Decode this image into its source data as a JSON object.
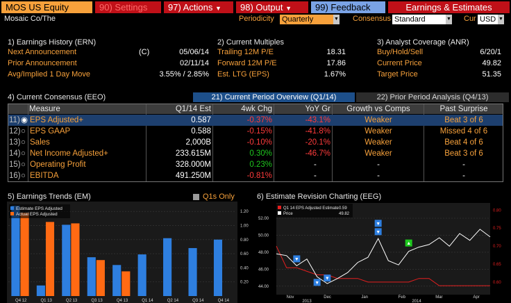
{
  "toolbar": {
    "security": "MOS US Equity",
    "settings": "90) Settings",
    "actions": "97) Actions",
    "output": "98) Output",
    "feedback": "99) Feedback",
    "title": "Earnings & Estimates"
  },
  "header": {
    "company": "Mosaic Co/The",
    "periodicity_label": "Periodicity",
    "periodicity_value": "Quarterly",
    "consensus_label": "Consensus",
    "consensus_value": "Standard",
    "cur_label": "Cur",
    "cur_value": "USD"
  },
  "earnings_history": {
    "title": "1) Earnings History (ERN)",
    "rows": [
      {
        "label": "Next Announcement",
        "flag": "(C)",
        "value": "05/06/14"
      },
      {
        "label": "Prior Announcement",
        "flag": "",
        "value": "02/11/14"
      },
      {
        "label": "Avg/Implied 1 Day Move",
        "flag": "",
        "value": "3.55% / 2.85%"
      }
    ]
  },
  "current_multiples": {
    "title": "2) Current Multiples",
    "rows": [
      {
        "label": "Trailing 12M P/E",
        "value": "18.31"
      },
      {
        "label": "Forward 12M P/E",
        "value": "17.86"
      },
      {
        "label": "Est. LTG (EPS)",
        "value": "1.67%"
      }
    ]
  },
  "analyst_coverage": {
    "title": "3) Analyst Coverage (ANR)",
    "rows": [
      {
        "label": "Buy/Hold/Sell",
        "value": "6/20/1"
      },
      {
        "label": "Current Price",
        "value": "49.82"
      },
      {
        "label": "Target Price",
        "value": "51.35"
      }
    ]
  },
  "consensus": {
    "title": "4) Current Consensus (EEO)",
    "tab_current": "21) Current Period Overview (Q1/14)",
    "tab_prior": "22) Prior Period Analysis (Q4/13)",
    "columns": [
      "Measure",
      "Q1/14 Est",
      "4wk Chg",
      "YoY Gr",
      "Growth vs Comps",
      "Past Surprise"
    ],
    "rows": [
      {
        "idx": "11)",
        "measure": "EPS Adjusted+",
        "est": "0.587",
        "chg": "-0.37%",
        "yoy": "-43.1%",
        "growth": "Weaker",
        "surprise": "Beat 3 of 6"
      },
      {
        "idx": "12)",
        "measure": "EPS GAAP",
        "est": "0.588",
        "chg": "-0.15%",
        "yoy": "-41.8%",
        "growth": "Weaker",
        "surprise": "Missed 4 of 6"
      },
      {
        "idx": "13)",
        "measure": "Sales",
        "est": "2,000B",
        "chg": "-0.10%",
        "yoy": "-20.1%",
        "growth": "Weaker",
        "surprise": "Beat 4 of 6"
      },
      {
        "idx": "14)",
        "measure": "Net Income Adjusted+",
        "est": "233.615M",
        "chg": "0.30%",
        "yoy": "-46.7%",
        "growth": "Weaker",
        "surprise": "Beat 3 of 6"
      },
      {
        "idx": "15)",
        "measure": "Operating Profit",
        "est": "328.000M",
        "chg": "0.23%",
        "yoy": "-",
        "growth": "-",
        "surprise": "-"
      },
      {
        "idx": "16)",
        "measure": "EBITDA",
        "est": "491.250M",
        "chg": "-0.81%",
        "yoy": "-",
        "growth": "-",
        "surprise": "-"
      }
    ]
  },
  "earnings_trends": {
    "title": "5) Earnings Trends (EM)",
    "q1_only": "Q1s Only"
  },
  "estimate_revision": {
    "title": "6) Estimate Revision Charting (EEG)"
  },
  "chart_data": [
    {
      "type": "bar",
      "categories": [
        "Q4 12",
        "Q1 13",
        "Q2 13",
        "Q3 13",
        "Q4 13",
        "Q1 14",
        "Q2 14",
        "Q3 14",
        "Q4 14"
      ],
      "series": [
        {
          "name": "Estimate EPS Adjusted",
          "color": "#2e7fe0",
          "values": [
            1.28,
            0.15,
            1.01,
            0.55,
            0.44,
            0.59,
            0.82,
            0.68,
            0.8
          ]
        },
        {
          "name": "Actual EPS Adjusted",
          "color": "#ff6a13",
          "values": [
            1.18,
            1.05,
            1.03,
            0.51,
            0.35,
            null,
            null,
            null,
            null
          ]
        }
      ],
      "yticks": [
        "0.20",
        "0.40",
        "0.60",
        "0.80",
        "1.00",
        "1.20"
      ],
      "ylim": [
        0,
        1.3
      ]
    },
    {
      "type": "line",
      "x_labels": [
        "Nov",
        "Dec",
        "Jan",
        "Feb",
        "Mar",
        "Apr"
      ],
      "year_labels": [
        "2013",
        "2014"
      ],
      "left_yticks": [
        "44.00",
        "46.00",
        "48.00",
        "50.00",
        "52.00"
      ],
      "right_yticks": [
        "0.60",
        "0.65",
        "0.70",
        "0.75",
        "0.80"
      ],
      "series": [
        {
          "name": "Q1 14 EPS Adjusted Estimate",
          "value_label": "0.59",
          "color": "#e41f1f",
          "axis": "right",
          "values": [
            0.7,
            0.64,
            0.64,
            0.63,
            0.62,
            0.62,
            0.61,
            0.61,
            0.61,
            0.6,
            0.6,
            0.6,
            0.6,
            0.6,
            0.61,
            0.61,
            0.59,
            0.59,
            0.59,
            0.59,
            0.59,
            0.59
          ]
        },
        {
          "name": "Price",
          "value_label": "49.82",
          "color": "#ffffff",
          "axis": "left",
          "values": [
            47.8,
            47.6,
            46.4,
            47.2,
            45.1,
            44.3,
            44.9,
            45.6,
            46.8,
            47.4,
            49.6,
            47.0,
            46.5,
            48.1,
            48.6,
            48.9,
            49.7,
            48.7,
            50.2,
            49.4,
            50.7,
            49.8
          ]
        }
      ],
      "markers": [
        {
          "type": "down",
          "color": "#2e7fe0"
        },
        {
          "type": "down",
          "color": "#2e7fe0"
        },
        {
          "type": "down",
          "color": "#2e7fe0"
        },
        {
          "type": "down",
          "color": "#2e7fe0"
        },
        {
          "type": "down",
          "color": "#2e7fe0"
        },
        {
          "type": "up",
          "color": "#1ec81e"
        }
      ]
    }
  ]
}
